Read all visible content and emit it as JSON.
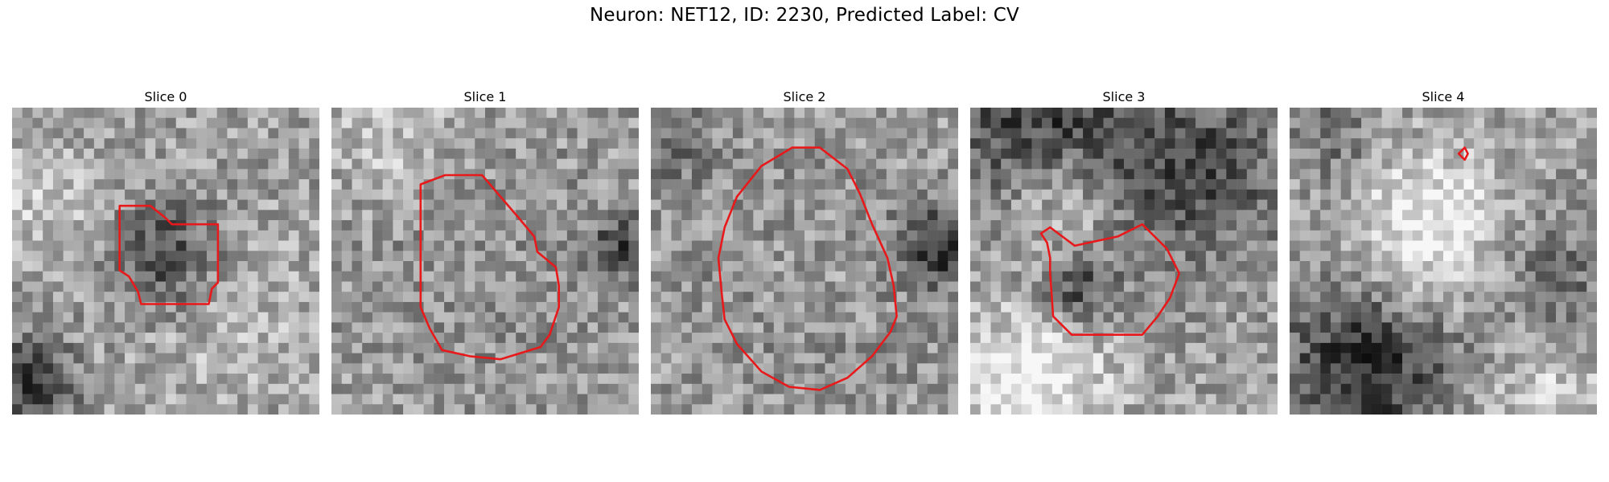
{
  "figure": {
    "title": "Neuron: NET12, ID: 2230, Predicted Label: CV",
    "contour_color": "#e8191b"
  },
  "panels": [
    {
      "title": "Slice 0",
      "contour": [
        [
          0.35,
          0.32
        ],
        [
          0.45,
          0.32
        ],
        [
          0.5,
          0.36
        ],
        [
          0.52,
          0.38
        ],
        [
          0.67,
          0.38
        ],
        [
          0.67,
          0.57
        ],
        [
          0.65,
          0.59
        ],
        [
          0.64,
          0.64
        ],
        [
          0.42,
          0.64
        ],
        [
          0.41,
          0.6
        ],
        [
          0.38,
          0.55
        ],
        [
          0.35,
          0.53
        ]
      ]
    },
    {
      "title": "Slice 1",
      "contour": [
        [
          0.29,
          0.25
        ],
        [
          0.37,
          0.22
        ],
        [
          0.49,
          0.22
        ],
        [
          0.55,
          0.29
        ],
        [
          0.61,
          0.36
        ],
        [
          0.66,
          0.42
        ],
        [
          0.67,
          0.47
        ],
        [
          0.73,
          0.52
        ],
        [
          0.74,
          0.58
        ],
        [
          0.74,
          0.65
        ],
        [
          0.71,
          0.74
        ],
        [
          0.68,
          0.78
        ],
        [
          0.55,
          0.82
        ],
        [
          0.45,
          0.81
        ],
        [
          0.36,
          0.79
        ],
        [
          0.32,
          0.72
        ],
        [
          0.29,
          0.65
        ],
        [
          0.29,
          0.57
        ],
        [
          0.29,
          0.44
        ]
      ]
    },
    {
      "title": "Slice 2",
      "contour": [
        [
          0.36,
          0.19
        ],
        [
          0.46,
          0.13
        ],
        [
          0.55,
          0.13
        ],
        [
          0.64,
          0.2
        ],
        [
          0.68,
          0.28
        ],
        [
          0.72,
          0.38
        ],
        [
          0.77,
          0.49
        ],
        [
          0.79,
          0.58
        ],
        [
          0.8,
          0.68
        ],
        [
          0.78,
          0.73
        ],
        [
          0.72,
          0.81
        ],
        [
          0.64,
          0.88
        ],
        [
          0.55,
          0.92
        ],
        [
          0.45,
          0.91
        ],
        [
          0.36,
          0.86
        ],
        [
          0.28,
          0.77
        ],
        [
          0.24,
          0.69
        ],
        [
          0.23,
          0.6
        ],
        [
          0.22,
          0.49
        ],
        [
          0.24,
          0.39
        ],
        [
          0.28,
          0.29
        ]
      ]
    },
    {
      "title": "Slice 3",
      "contour": [
        [
          0.23,
          0.41
        ],
        [
          0.26,
          0.39
        ],
        [
          0.34,
          0.45
        ],
        [
          0.48,
          0.42
        ],
        [
          0.56,
          0.38
        ],
        [
          0.64,
          0.46
        ],
        [
          0.68,
          0.54
        ],
        [
          0.65,
          0.62
        ],
        [
          0.61,
          0.68
        ],
        [
          0.56,
          0.74
        ],
        [
          0.44,
          0.74
        ],
        [
          0.33,
          0.74
        ],
        [
          0.27,
          0.68
        ],
        [
          0.26,
          0.54
        ],
        [
          0.26,
          0.49
        ],
        [
          0.25,
          0.44
        ]
      ]
    },
    {
      "title": "Slice 4",
      "contour": [
        [
          0.55,
          0.15
        ],
        [
          0.57,
          0.13
        ],
        [
          0.58,
          0.15
        ],
        [
          0.57,
          0.17
        ],
        [
          0.55,
          0.15
        ]
      ]
    }
  ]
}
